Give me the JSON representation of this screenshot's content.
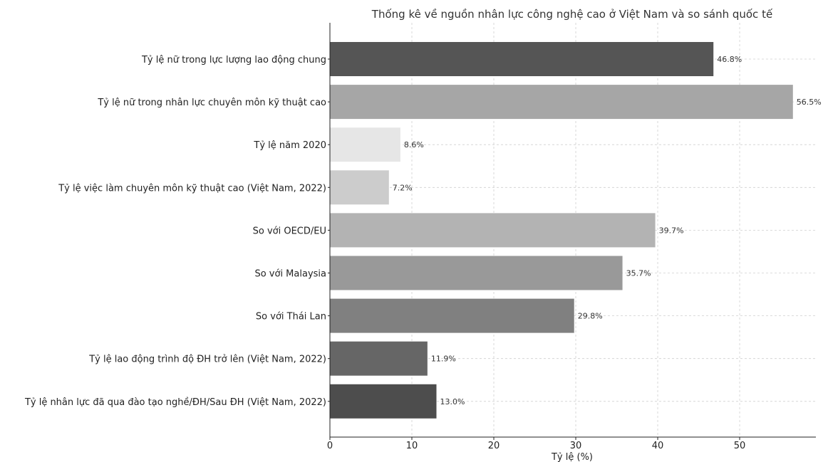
{
  "chart_data": {
    "type": "bar",
    "orientation": "horizontal",
    "title": "Thống kê về nguồn nhân lực công nghệ cao ở Việt Nam và so sánh quốc tế",
    "xlabel": "Tỷ lệ (%)",
    "ylabel": "",
    "xlim": [
      0,
      59.3
    ],
    "xticks": [
      0,
      10,
      20,
      30,
      40,
      50
    ],
    "grid": true,
    "categories": [
      "Tỷ lệ nữ trong lực lượng lao động chung",
      "Tỷ lệ nữ trong nhân lực chuyên môn kỹ thuật cao",
      "Tỷ lệ năm 2020",
      "Tỷ lệ việc làm chuyên môn kỹ thuật cao (Việt Nam, 2022)",
      "So với OECD/EU",
      "So với Malaysia",
      "So với Thái Lan",
      "Tỷ lệ lao động trình độ ĐH trở lên (Việt Nam, 2022)",
      "Tỷ lệ nhân lực đã qua đào tạo nghề/ĐH/Sau ĐH (Việt Nam, 2022)"
    ],
    "values": [
      46.8,
      56.5,
      8.6,
      7.2,
      39.7,
      35.7,
      29.8,
      11.9,
      13.0
    ],
    "value_labels": [
      "46.8%",
      "56.5%",
      "8.6%",
      "7.2%",
      "39.7%",
      "35.7%",
      "29.8%",
      "11.9%",
      "13.0%"
    ],
    "colors": [
      "#555555",
      "#a6a6a6",
      "#e6e6e6",
      "#cccccc",
      "#b3b3b3",
      "#999999",
      "#808080",
      "#666666",
      "#4d4d4d"
    ]
  }
}
